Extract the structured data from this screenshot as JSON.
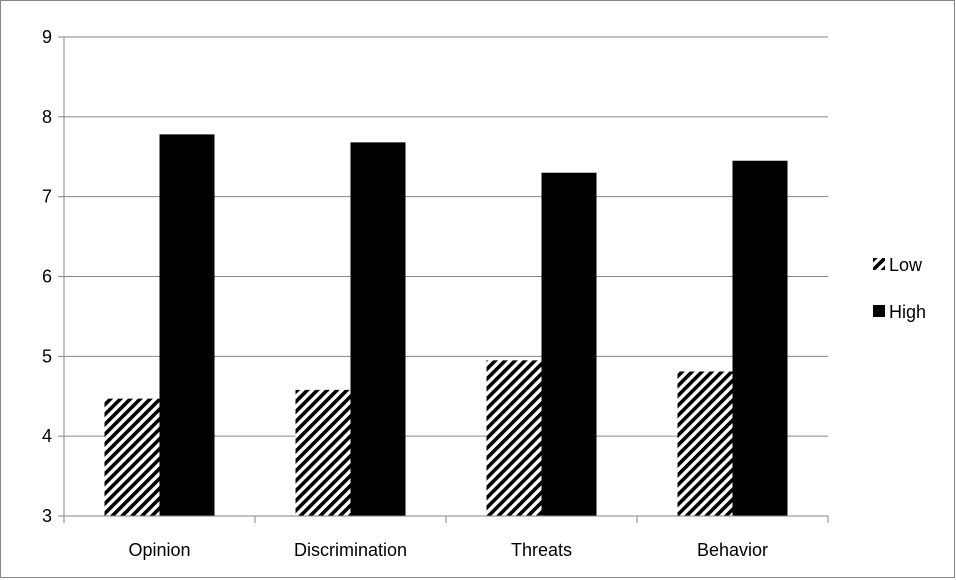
{
  "chart_data": {
    "type": "bar",
    "categories": [
      "Opinion",
      "Discrimination",
      "Threats",
      "Behavior"
    ],
    "series": [
      {
        "name": "Low",
        "values": [
          4.47,
          4.58,
          4.95,
          4.81
        ],
        "pattern": "diagonal-hatch",
        "color": "#000000"
      },
      {
        "name": "High",
        "values": [
          7.78,
          7.68,
          7.3,
          7.45
        ],
        "pattern": "solid",
        "color": "#000000"
      }
    ],
    "ylim": [
      3,
      9
    ],
    "yticks": [
      "3",
      "4",
      "5",
      "6",
      "7",
      "8",
      "9"
    ],
    "grid": true,
    "legend_position": "right"
  }
}
